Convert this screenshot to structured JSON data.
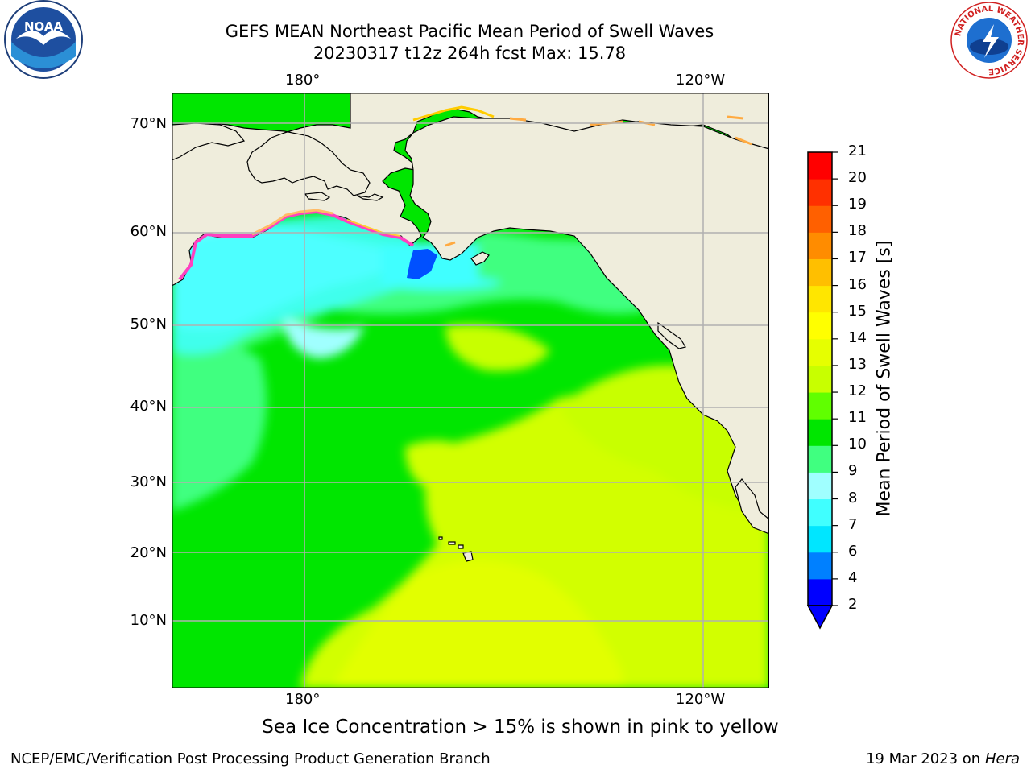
{
  "header": {
    "title_line1": "GEFS MEAN Northeast Pacific Mean Period of Swell Waves",
    "title_line2": "20230317 t12z 264h fcst   Max: 15.78"
  },
  "map": {
    "lon_ticks_top": [
      "180°",
      "120°W"
    ],
    "lon_ticks_bottom": [
      "180°",
      "120°W"
    ],
    "lat_ticks": [
      "70°N",
      "60°N",
      "50°N",
      "40°N",
      "30°N",
      "20°N",
      "10°N"
    ]
  },
  "colorbar": {
    "label": "Mean Period of Swell Waves [s]",
    "ticks": [
      "2",
      "4",
      "6",
      "7",
      "8",
      "9",
      "10",
      "11",
      "12",
      "13",
      "14",
      "15",
      "16",
      "17",
      "18",
      "19",
      "20",
      "21"
    ],
    "colors": [
      "#0000ff",
      "#0080ff",
      "#00e6ff",
      "#40ffff",
      "#a0ffff",
      "#40ff80",
      "#00e600",
      "#60ff00",
      "#c8ff00",
      "#e6ff00",
      "#ffff00",
      "#ffe600",
      "#ffbf00",
      "#ff8c00",
      "#ff6000",
      "#ff3000",
      "#ff0000"
    ],
    "extend_color": "#0000ff"
  },
  "footer": {
    "note": "Sea Ice Concentration > 15% is shown in pink to yellow",
    "credit": "NCEP/EMC/Verification Post Processing Product Generation Branch",
    "date": "19 Mar 2023 on",
    "date_host": "Hera"
  },
  "logos": {
    "noaa_text": "NOAA",
    "nws_text": "NATIONAL WEATHER SERVICE"
  },
  "colors": {
    "land": "#efeddc",
    "ocean_green": "#00e600",
    "ocean_yellow": "#d2ff00",
    "ocean_cyan": "#40ffff",
    "grid": "#b0b0b0"
  }
}
